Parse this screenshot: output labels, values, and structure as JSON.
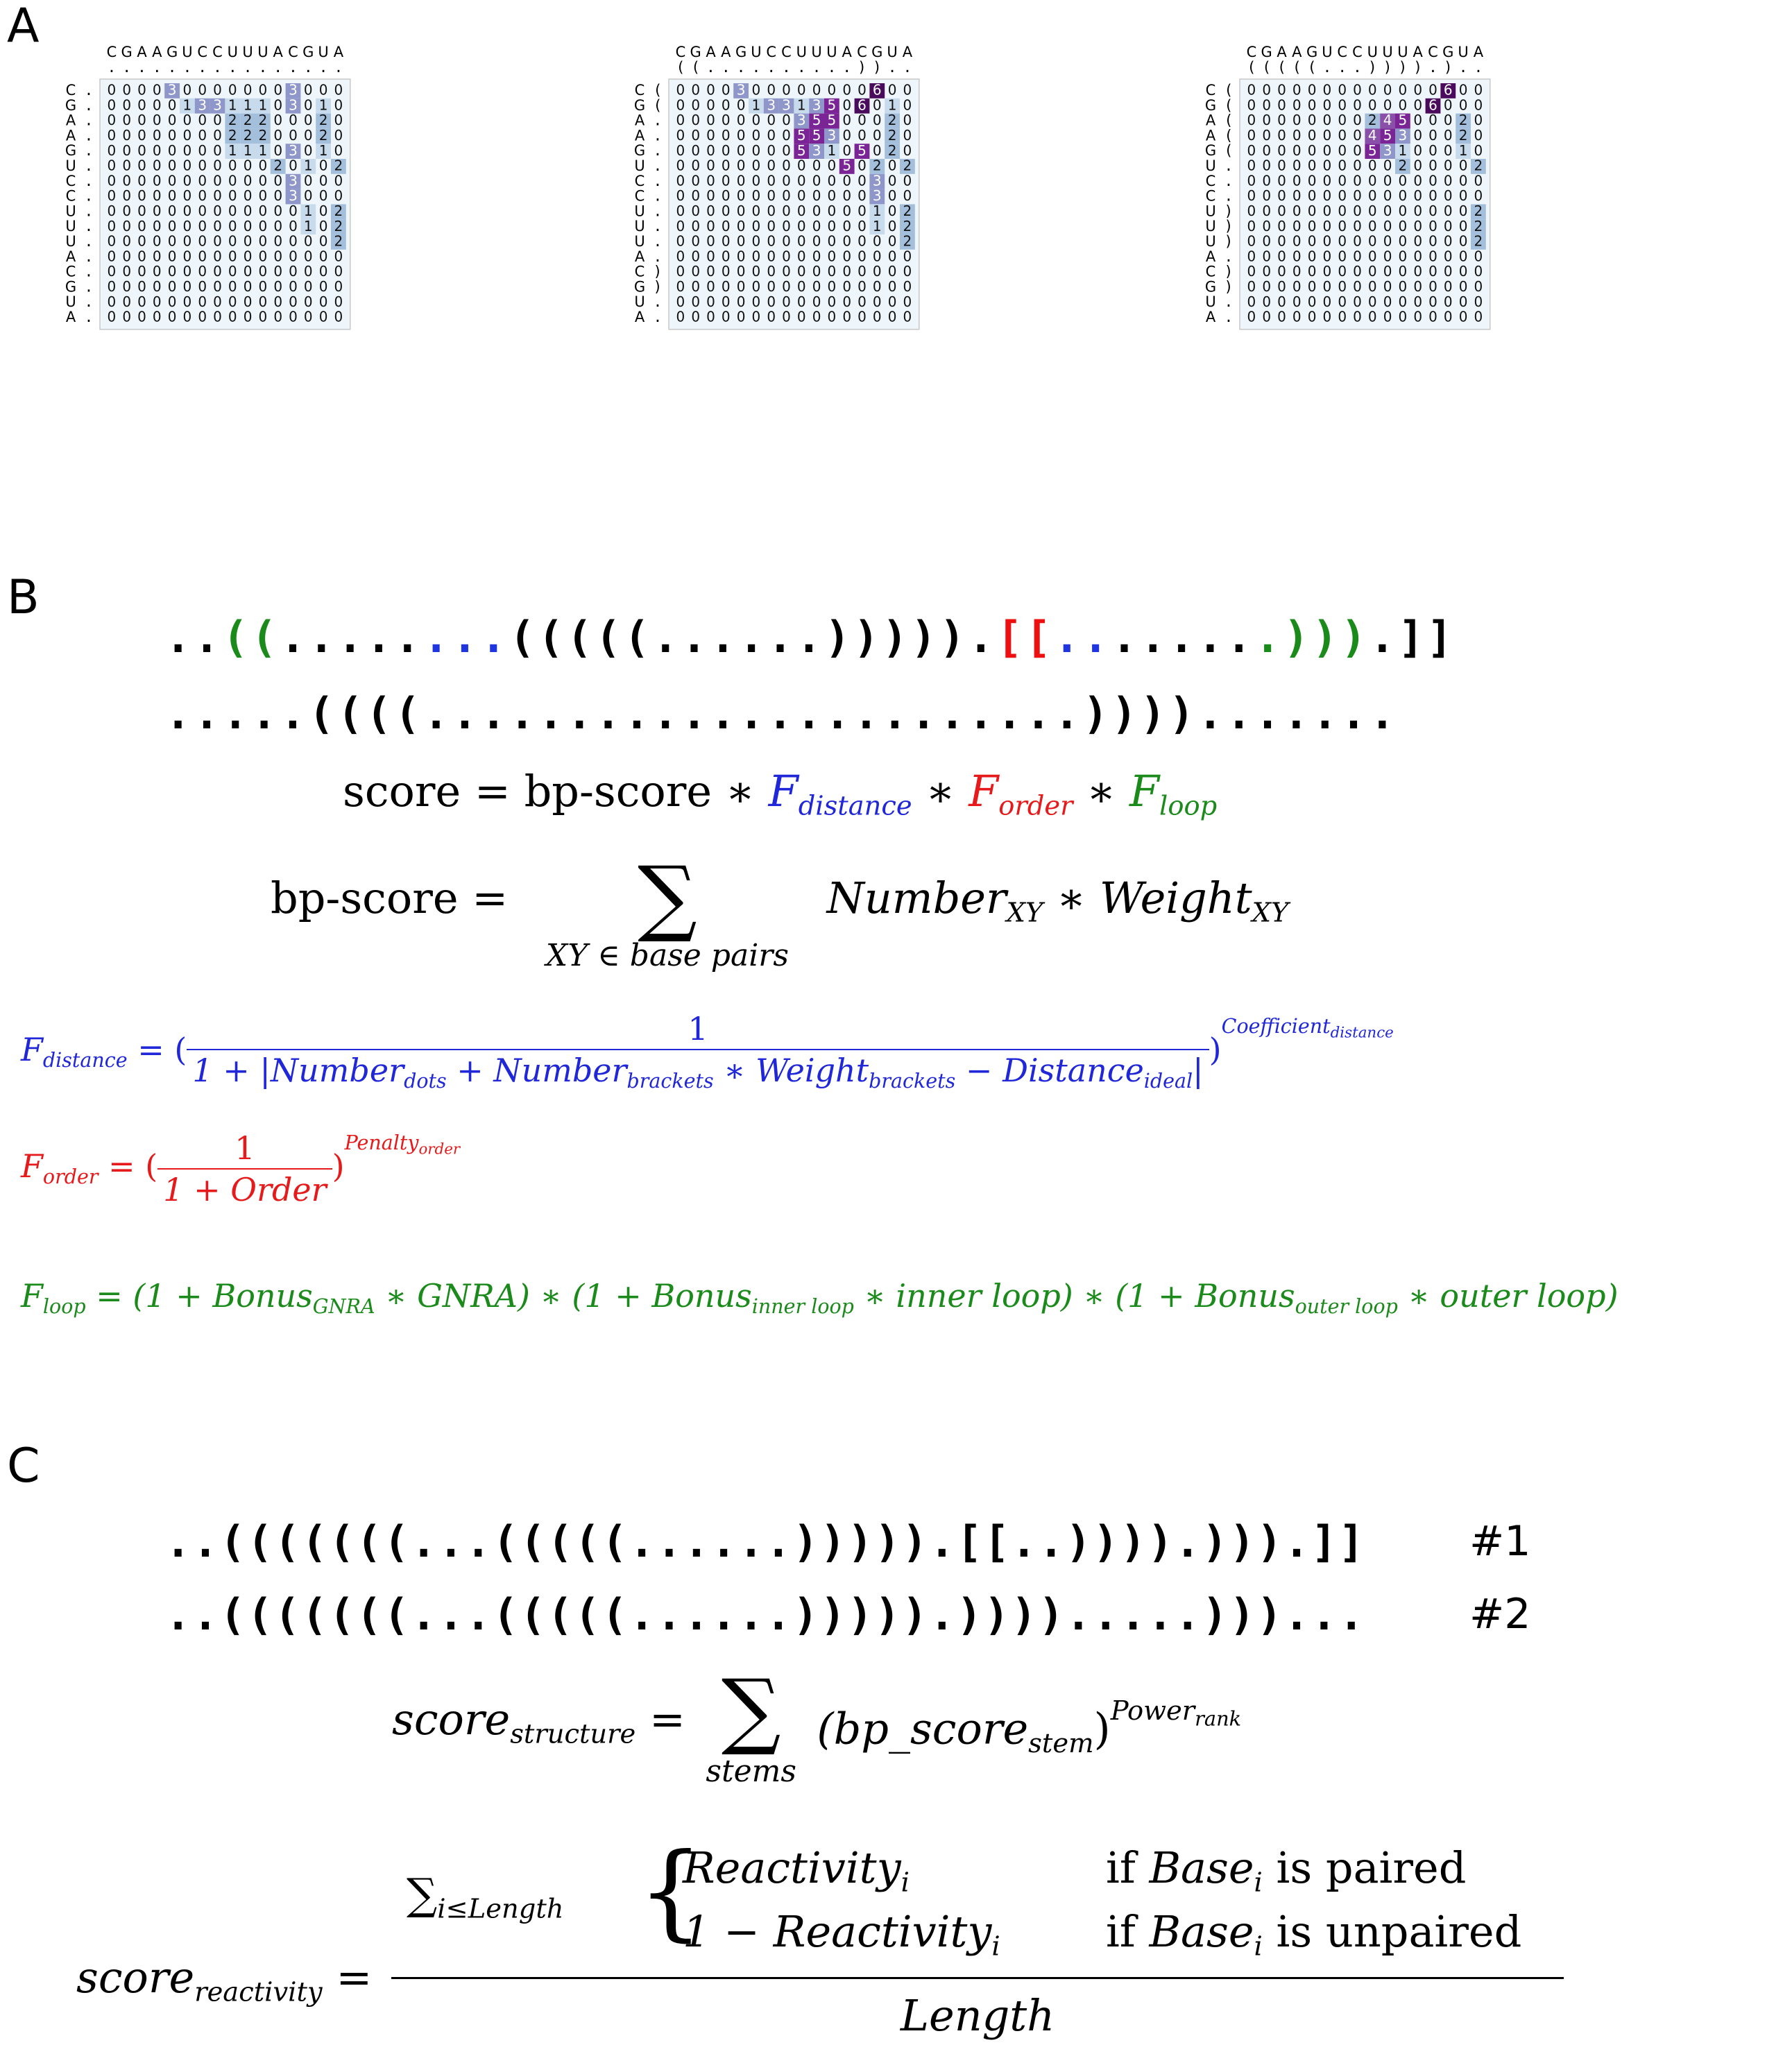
{
  "panel_a": {
    "label": "A",
    "sequence": [
      "C",
      "G",
      "A",
      "A",
      "G",
      "U",
      "C",
      "C",
      "U",
      "U",
      "U",
      "A",
      "C",
      "G",
      "U",
      "A"
    ],
    "matrices": [
      {
        "col_structure": [
          ".",
          ".",
          ".",
          ".",
          ".",
          ".",
          ".",
          ".",
          ".",
          ".",
          ".",
          ".",
          ".",
          ".",
          ".",
          "."
        ],
        "row_structure": [
          ".",
          ".",
          ".",
          ".",
          ".",
          ".",
          ".",
          ".",
          ".",
          ".",
          ".",
          ".",
          ".",
          ".",
          ".",
          "."
        ],
        "cells": [
          [
            0,
            0,
            0,
            0,
            3,
            0,
            0,
            0,
            0,
            0,
            0,
            0,
            3,
            0,
            0,
            0
          ],
          [
            0,
            0,
            0,
            0,
            0,
            1,
            3,
            3,
            1,
            1,
            1,
            0,
            3,
            0,
            1,
            0
          ],
          [
            0,
            0,
            0,
            0,
            0,
            0,
            0,
            0,
            2,
            2,
            2,
            0,
            0,
            0,
            2,
            0
          ],
          [
            0,
            0,
            0,
            0,
            0,
            0,
            0,
            0,
            2,
            2,
            2,
            0,
            0,
            0,
            2,
            0
          ],
          [
            0,
            0,
            0,
            0,
            0,
            0,
            0,
            0,
            1,
            1,
            1,
            0,
            3,
            0,
            1,
            0
          ],
          [
            0,
            0,
            0,
            0,
            0,
            0,
            0,
            0,
            0,
            0,
            0,
            2,
            0,
            1,
            0,
            2
          ],
          [
            0,
            0,
            0,
            0,
            0,
            0,
            0,
            0,
            0,
            0,
            0,
            0,
            3,
            0,
            0,
            0
          ],
          [
            0,
            0,
            0,
            0,
            0,
            0,
            0,
            0,
            0,
            0,
            0,
            0,
            3,
            0,
            0,
            0
          ],
          [
            0,
            0,
            0,
            0,
            0,
            0,
            0,
            0,
            0,
            0,
            0,
            0,
            0,
            1,
            0,
            2
          ],
          [
            0,
            0,
            0,
            0,
            0,
            0,
            0,
            0,
            0,
            0,
            0,
            0,
            0,
            1,
            0,
            2
          ],
          [
            0,
            0,
            0,
            0,
            0,
            0,
            0,
            0,
            0,
            0,
            0,
            0,
            0,
            0,
            0,
            2
          ],
          [
            0,
            0,
            0,
            0,
            0,
            0,
            0,
            0,
            0,
            0,
            0,
            0,
            0,
            0,
            0,
            0
          ],
          [
            0,
            0,
            0,
            0,
            0,
            0,
            0,
            0,
            0,
            0,
            0,
            0,
            0,
            0,
            0,
            0
          ],
          [
            0,
            0,
            0,
            0,
            0,
            0,
            0,
            0,
            0,
            0,
            0,
            0,
            0,
            0,
            0,
            0
          ],
          [
            0,
            0,
            0,
            0,
            0,
            0,
            0,
            0,
            0,
            0,
            0,
            0,
            0,
            0,
            0,
            0
          ],
          [
            0,
            0,
            0,
            0,
            0,
            0,
            0,
            0,
            0,
            0,
            0,
            0,
            0,
            0,
            0,
            0
          ]
        ]
      },
      {
        "col_structure": [
          "(",
          "(",
          ".",
          ".",
          ".",
          ".",
          ".",
          ".",
          ".",
          ".",
          ".",
          ".",
          ")",
          ")",
          ".",
          "."
        ],
        "row_structure": [
          "(",
          "(",
          ".",
          ".",
          ".",
          ".",
          ".",
          ".",
          ".",
          ".",
          ".",
          ".",
          ")",
          ")",
          ".",
          "."
        ],
        "cells": [
          [
            0,
            0,
            0,
            0,
            3,
            0,
            0,
            0,
            0,
            0,
            0,
            0,
            0,
            6,
            0,
            0
          ],
          [
            0,
            0,
            0,
            0,
            0,
            1,
            3,
            3,
            1,
            3,
            5,
            0,
            6,
            0,
            1,
            0
          ],
          [
            0,
            0,
            0,
            0,
            0,
            0,
            0,
            0,
            3,
            5,
            5,
            0,
            0,
            0,
            2,
            0
          ],
          [
            0,
            0,
            0,
            0,
            0,
            0,
            0,
            0,
            5,
            5,
            3,
            0,
            0,
            0,
            2,
            0
          ],
          [
            0,
            0,
            0,
            0,
            0,
            0,
            0,
            0,
            5,
            3,
            1,
            0,
            5,
            0,
            2,
            0
          ],
          [
            0,
            0,
            0,
            0,
            0,
            0,
            0,
            0,
            0,
            0,
            0,
            5,
            0,
            2,
            0,
            2
          ],
          [
            0,
            0,
            0,
            0,
            0,
            0,
            0,
            0,
            0,
            0,
            0,
            0,
            0,
            3,
            0,
            0
          ],
          [
            0,
            0,
            0,
            0,
            0,
            0,
            0,
            0,
            0,
            0,
            0,
            0,
            0,
            3,
            0,
            0
          ],
          [
            0,
            0,
            0,
            0,
            0,
            0,
            0,
            0,
            0,
            0,
            0,
            0,
            0,
            1,
            0,
            2
          ],
          [
            0,
            0,
            0,
            0,
            0,
            0,
            0,
            0,
            0,
            0,
            0,
            0,
            0,
            1,
            0,
            2
          ],
          [
            0,
            0,
            0,
            0,
            0,
            0,
            0,
            0,
            0,
            0,
            0,
            0,
            0,
            0,
            0,
            2
          ],
          [
            0,
            0,
            0,
            0,
            0,
            0,
            0,
            0,
            0,
            0,
            0,
            0,
            0,
            0,
            0,
            0
          ],
          [
            0,
            0,
            0,
            0,
            0,
            0,
            0,
            0,
            0,
            0,
            0,
            0,
            0,
            0,
            0,
            0
          ],
          [
            0,
            0,
            0,
            0,
            0,
            0,
            0,
            0,
            0,
            0,
            0,
            0,
            0,
            0,
            0,
            0
          ],
          [
            0,
            0,
            0,
            0,
            0,
            0,
            0,
            0,
            0,
            0,
            0,
            0,
            0,
            0,
            0,
            0
          ],
          [
            0,
            0,
            0,
            0,
            0,
            0,
            0,
            0,
            0,
            0,
            0,
            0,
            0,
            0,
            0,
            0
          ]
        ]
      },
      {
        "col_structure": [
          "(",
          "(",
          "(",
          "(",
          "(",
          ".",
          ".",
          ".",
          ")",
          ")",
          ")",
          ")",
          ".",
          ")",
          ".",
          "."
        ],
        "row_structure": [
          "(",
          "(",
          "(",
          "(",
          "(",
          ".",
          ".",
          ".",
          ")",
          ")",
          ")",
          ".",
          ")",
          ")",
          ".",
          "."
        ],
        "cells": [
          [
            0,
            0,
            0,
            0,
            0,
            0,
            0,
            0,
            0,
            0,
            0,
            0,
            0,
            6,
            0,
            0
          ],
          [
            0,
            0,
            0,
            0,
            0,
            0,
            0,
            0,
            0,
            0,
            0,
            0,
            6,
            0,
            0,
            0
          ],
          [
            0,
            0,
            0,
            0,
            0,
            0,
            0,
            0,
            2,
            4,
            5,
            0,
            0,
            0,
            2,
            0
          ],
          [
            0,
            0,
            0,
            0,
            0,
            0,
            0,
            0,
            4,
            5,
            3,
            0,
            0,
            0,
            2,
            0
          ],
          [
            0,
            0,
            0,
            0,
            0,
            0,
            0,
            0,
            5,
            3,
            1,
            0,
            0,
            0,
            1,
            0
          ],
          [
            0,
            0,
            0,
            0,
            0,
            0,
            0,
            0,
            0,
            0,
            2,
            0,
            0,
            0,
            0,
            2
          ],
          [
            0,
            0,
            0,
            0,
            0,
            0,
            0,
            0,
            0,
            0,
            0,
            0,
            0,
            0,
            0,
            0
          ],
          [
            0,
            0,
            0,
            0,
            0,
            0,
            0,
            0,
            0,
            0,
            0,
            0,
            0,
            0,
            0,
            0
          ],
          [
            0,
            0,
            0,
            0,
            0,
            0,
            0,
            0,
            0,
            0,
            0,
            0,
            0,
            0,
            0,
            2
          ],
          [
            0,
            0,
            0,
            0,
            0,
            0,
            0,
            0,
            0,
            0,
            0,
            0,
            0,
            0,
            0,
            2
          ],
          [
            0,
            0,
            0,
            0,
            0,
            0,
            0,
            0,
            0,
            0,
            0,
            0,
            0,
            0,
            0,
            2
          ],
          [
            0,
            0,
            0,
            0,
            0,
            0,
            0,
            0,
            0,
            0,
            0,
            0,
            0,
            0,
            0,
            0
          ],
          [
            0,
            0,
            0,
            0,
            0,
            0,
            0,
            0,
            0,
            0,
            0,
            0,
            0,
            0,
            0,
            0
          ],
          [
            0,
            0,
            0,
            0,
            0,
            0,
            0,
            0,
            0,
            0,
            0,
            0,
            0,
            0,
            0,
            0
          ],
          [
            0,
            0,
            0,
            0,
            0,
            0,
            0,
            0,
            0,
            0,
            0,
            0,
            0,
            0,
            0,
            0
          ],
          [
            0,
            0,
            0,
            0,
            0,
            0,
            0,
            0,
            0,
            0,
            0,
            0,
            0,
            0,
            0,
            0
          ]
        ]
      }
    ],
    "colors": {
      "cell_bg": "#eef6fb",
      "scale": [
        "#eef6fb",
        "#c7dbed",
        "#a4bfdc",
        "#8f96c9",
        "#8a4fa8",
        "#7a2496",
        "#4a0b5c"
      ]
    }
  },
  "panel_b": {
    "label": "B",
    "line1_segments": [
      {
        "t": "..",
        "c": "k"
      },
      {
        "t": "((",
        "c": "g"
      },
      {
        "t": ".....",
        "c": "k"
      },
      {
        "t": "...",
        "c": "b"
      },
      {
        "t": "((((( ......))))).",
        "c": "k"
      },
      {
        "t": "[[",
        "c": "r"
      },
      {
        "t": "..",
        "c": "b"
      },
      {
        "t": ".....",
        "c": "k"
      },
      {
        "t": ".",
        "c": "g"
      },
      {
        "t": ")))",
        "c": "g"
      },
      {
        "t": ".]]",
        "c": "k"
      }
    ],
    "line2": ".....((((.......................)))).......",
    "eq_score": {
      "lhs": "score = bp-score ∗ ",
      "f1": "F",
      "f1sub": "distance",
      "op1": " ∗ ",
      "f2": "F",
      "f2sub": "order",
      "op2": " ∗ ",
      "f3": "F",
      "f3sub": "loop"
    },
    "eq_bp": {
      "lhs": "bp-score = ",
      "sigma": "∑",
      "under": "XY ∈ base pairs",
      "term1": "Number",
      "term1sub": "XY",
      "op": " ∗ ",
      "term2": "Weight",
      "term2sub": "XY"
    },
    "f_distance": {
      "lhs": "F",
      "lhs_sub": "distance",
      "eq": " = (",
      "num": "1",
      "den_a": "1 + |Number",
      "den_a_sub": "dots",
      "den_b": " + Number",
      "den_b_sub": "brackets",
      "den_c": " ∗ Weight",
      "den_c_sub": "brackets",
      "den_d": " − Distance",
      "den_d_sub": "ideal",
      "den_e": "|",
      "close": ")",
      "exp": "Coefficient",
      "exp_sub": "distance"
    },
    "f_order": {
      "lhs": "F",
      "lhs_sub": "order",
      "eq": " = (",
      "num": "1",
      "den": "1 + Order",
      "close": ")",
      "exp": "Penalty",
      "exp_sub": "order"
    },
    "f_loop": {
      "lhs": "F",
      "lhs_sub": "loop",
      "p1": " = (1 + Bonus",
      "p1_sub": "GNRA",
      "p2": " ∗ GNRA) ∗ (1 + Bonus",
      "p2_sub": "inner loop",
      "p3": " ∗ inner loop) ∗ (1 + Bonus",
      "p3_sub": "outer loop",
      "p4": " ∗ outer loop)"
    }
  },
  "panel_c": {
    "label": "C",
    "struct1": "..(((((((...(((((......))))).[[..)))).))).]]",
    "struct1_tag": "#1",
    "struct2": "..(((((((...(((((......))))).)))).....)))...",
    "struct2_tag": "#2",
    "eq_structure": {
      "lhs": "score",
      "lhs_sub": "structure",
      "eq": " = ",
      "sigma": "∑",
      "under": "stems",
      "term": "(bp_score",
      "term_sub": "stem",
      "close": ")",
      "exp": "Power",
      "exp_sub": "rank"
    },
    "eq_reactivity": {
      "lhs": "score",
      "lhs_sub": "reactivity",
      "eq": " = ",
      "sum": "∑",
      "sum_sub": "i≤Length",
      "case1_expr": "Reactivity",
      "case1_sub": "i",
      "case1_cond_a": "if ",
      "case1_cond_b": "Base",
      "case1_cond_sub": "i",
      "case1_cond_c": " is paired",
      "case2_expr": "1 − Reactivity",
      "case2_sub": "i",
      "case2_cond_a": "if ",
      "case2_cond_b": "Base",
      "case2_cond_sub": "i",
      "case2_cond_c": " is unpaired",
      "den": "Length"
    }
  }
}
